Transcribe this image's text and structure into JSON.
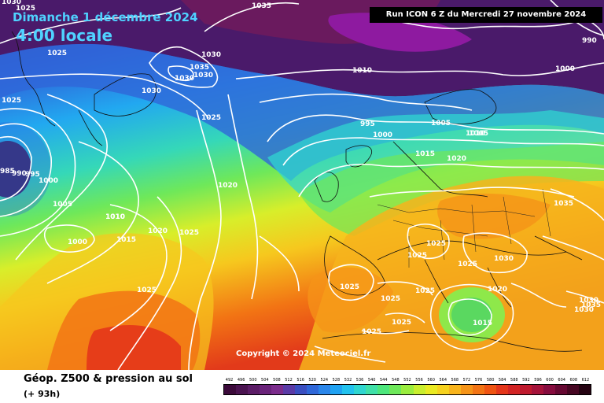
{
  "header": {
    "date_label": "Dimanche 1 décembre 2024",
    "time_label": "4:00 locale",
    "run_info": "Run ICON 6 Z du Mercredi 27 novembre 2024"
  },
  "copyright": "Copyright © 2024 Meteociel.fr",
  "footer": {
    "field_title": "Géop. Z500 & pression au sol",
    "lead_time": "(+ 93h)"
  },
  "legend": {
    "labels": [
      "492",
      "496",
      "500",
      "504",
      "508",
      "512",
      "516",
      "520",
      "524",
      "528",
      "532",
      "536",
      "540",
      "544",
      "548",
      "552",
      "556",
      "560",
      "564",
      "568",
      "572",
      "576",
      "580",
      "584",
      "588",
      "592",
      "596",
      "600",
      "604",
      "608",
      "612"
    ],
    "colors": [
      "#3b0a3a",
      "#4a1350",
      "#5b1c66",
      "#6a237a",
      "#7b2c8c",
      "#5a3aa6",
      "#3a4ec0",
      "#2f67d8",
      "#2a86ea",
      "#1fa2f2",
      "#22c2ee",
      "#2fd6d0",
      "#3fe0a8",
      "#4de67c",
      "#6ee85a",
      "#9aed3e",
      "#c9ee2e",
      "#eaea22",
      "#f6d21e",
      "#f8b41c",
      "#f59418",
      "#f27414",
      "#ef5412",
      "#e4361a",
      "#d22424",
      "#bf1a2e",
      "#a5133a",
      "#860c3e",
      "#660832",
      "#460622",
      "#250312"
    ]
  },
  "map": {
    "isobar_labels": [
      "1030",
      "1025",
      "1025",
      "1030",
      "1035",
      "1030",
      "1030",
      "1035",
      "1030",
      "1010",
      "1000",
      "990",
      "1025",
      "1025",
      "1010",
      "1005",
      "995",
      "1000",
      "1005",
      "1010",
      "1015",
      "1020",
      "1020",
      "985",
      "990",
      "995",
      "1000",
      "1005",
      "1000",
      "1010",
      "1015",
      "1020",
      "1025",
      "1035",
      "1025",
      "1025",
      "1025",
      "1025",
      "1030",
      "1025",
      "1020",
      "1015",
      "1025",
      "1025",
      "1025",
      "1025",
      "1030",
      "1030",
      "1035"
    ]
  }
}
